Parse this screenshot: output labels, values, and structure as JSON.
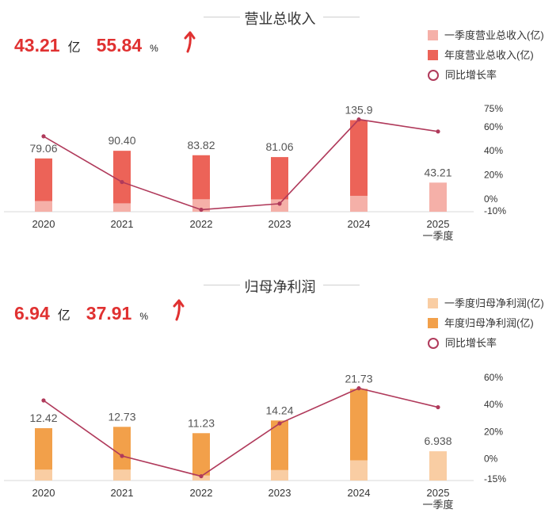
{
  "chart_data": [
    {
      "type": "bar",
      "title": "营业总收入",
      "headline": {
        "value": "43.21",
        "unit": "亿",
        "growth": "55.84",
        "growth_unit": "%"
      },
      "categories": [
        "2020",
        "2021",
        "2022",
        "2023",
        "2024",
        "2025"
      ],
      "category_sublabels": [
        "",
        "",
        "",
        "",
        "",
        "一季度"
      ],
      "series": [
        {
          "name": "一季度营业总收入(亿)",
          "kind": "bar",
          "values": [
            15.9,
            12.5,
            18.6,
            18.4,
            23.6,
            43.21
          ],
          "color": "#f5b0a8"
        },
        {
          "name": "年度营业总收入(亿)",
          "kind": "bar",
          "values": [
            79.06,
            90.4,
            83.82,
            81.06,
            135.9,
            null
          ],
          "color": "#ec6358"
        },
        {
          "name": "同比增长率",
          "kind": "line",
          "axis": "right",
          "values": [
            52,
            14,
            -9,
            -4,
            66,
            56
          ],
          "color": "#b03a5b"
        }
      ],
      "value_labels": [
        "79.06",
        "90.40",
        "83.82",
        "81.06",
        "135.9",
        "43.21"
      ],
      "ylim": [
        0,
        140
      ],
      "y2lim": [
        -10,
        75
      ],
      "y2ticks": [
        "75%",
        "60%",
        "40%",
        "20%",
        "0%",
        "-10%"
      ],
      "y2tick_values": [
        75,
        60,
        40,
        20,
        0,
        -10
      ],
      "legend": "top-right",
      "grid": false
    },
    {
      "type": "bar",
      "title": "归母净利润",
      "headline": {
        "value": "6.94",
        "unit": "亿",
        "growth": "37.91",
        "growth_unit": "%"
      },
      "categories": [
        "2020",
        "2021",
        "2022",
        "2023",
        "2024",
        "2025"
      ],
      "category_sublabels": [
        "",
        "",
        "",
        "",
        "",
        "一季度"
      ],
      "series": [
        {
          "name": "一季度归母净利润(亿)",
          "kind": "bar",
          "values": [
            2.6,
            2.6,
            1.2,
            2.5,
            4.8,
            6.938
          ],
          "color": "#f9cda3"
        },
        {
          "name": "年度归母净利润(亿)",
          "kind": "bar",
          "values": [
            12.42,
            12.73,
            11.23,
            14.24,
            21.73,
            null
          ],
          "color": "#f2a04a"
        },
        {
          "name": "同比增长率",
          "kind": "line",
          "axis": "right",
          "values": [
            43,
            2,
            -13,
            26,
            52,
            38
          ],
          "color": "#b03a5b"
        }
      ],
      "value_labels": [
        "12.42",
        "12.73",
        "11.23",
        "14.24",
        "21.73",
        "6.938"
      ],
      "ylim": [
        0,
        22
      ],
      "y2lim": [
        -15,
        60
      ],
      "y2ticks": [
        "60%",
        "40%",
        "20%",
        "0%",
        "-15%"
      ],
      "y2tick_values": [
        60,
        40,
        20,
        0,
        -15
      ],
      "legend": "top-right",
      "grid": false
    }
  ],
  "colors": {
    "accent_red": "#e03131",
    "arrow_red": "#e03131",
    "growth_line": "#b03a5b"
  },
  "icons": {
    "growth_arrow": "up-arrow-icon"
  }
}
